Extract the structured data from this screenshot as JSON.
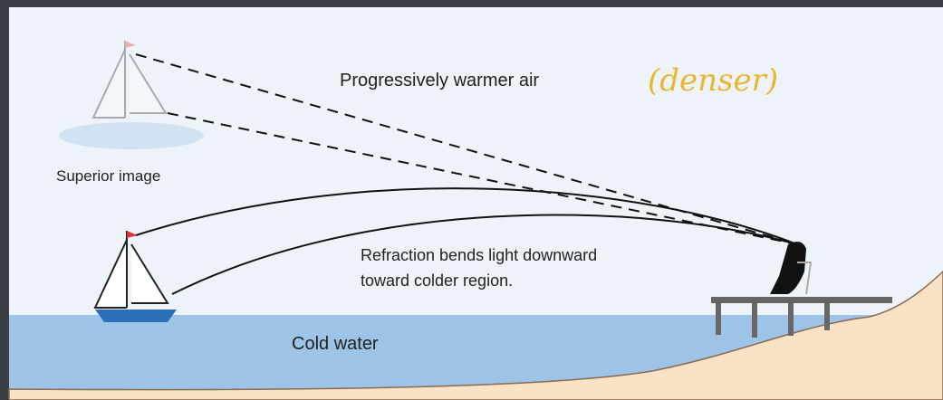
{
  "labels": {
    "air": "Progressively warmer air",
    "note": "(denser)",
    "superior": "Superior image",
    "refraction_line1": "Refraction bends light downward",
    "refraction_line2": "toward colder region.",
    "water": "Cold water"
  }
}
